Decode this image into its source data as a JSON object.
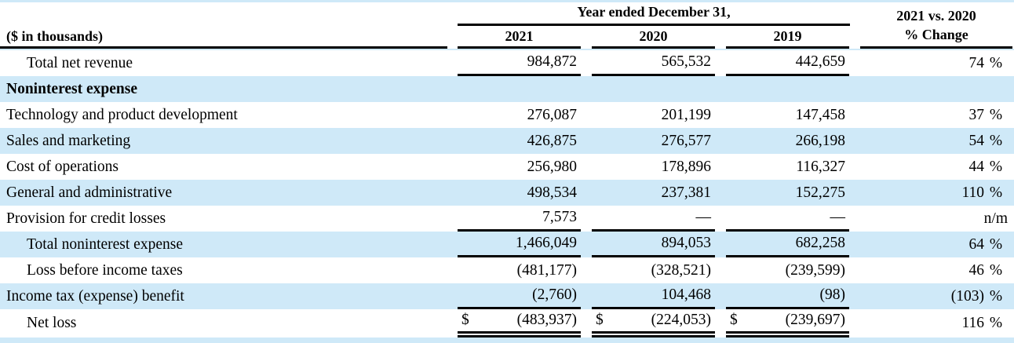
{
  "table": {
    "units_label": "($ in thousands)",
    "col_group_header": "Year ended December 31,",
    "change_header_line1": "2021 vs. 2020",
    "change_header_line2": "% Change",
    "year_headers": [
      "2021",
      "2020",
      "2019"
    ],
    "colors": {
      "row_highlight": "#cfe9f8",
      "rule": "#000000",
      "text": "#000000"
    },
    "rows": [
      {
        "label": "Total net revenue",
        "indent": true,
        "bold": false,
        "highlight": false,
        "dollar": false,
        "values": [
          "984,872",
          "565,532",
          "442,659"
        ],
        "pct": "74",
        "pct_sign": "%",
        "rule_below": "single"
      },
      {
        "label": "Noninterest expense",
        "indent": false,
        "bold": true,
        "highlight": true,
        "dollar": false,
        "values": [
          "",
          "",
          ""
        ],
        "pct": "",
        "pct_sign": "",
        "rule_below": "none"
      },
      {
        "label": "Technology and product development",
        "indent": false,
        "bold": false,
        "highlight": false,
        "dollar": false,
        "values": [
          "276,087",
          "201,199",
          "147,458"
        ],
        "pct": "37",
        "pct_sign": "%",
        "rule_below": "none"
      },
      {
        "label": "Sales and marketing",
        "indent": false,
        "bold": false,
        "highlight": true,
        "dollar": false,
        "values": [
          "426,875",
          "276,577",
          "266,198"
        ],
        "pct": "54",
        "pct_sign": "%",
        "rule_below": "none"
      },
      {
        "label": "Cost of operations",
        "indent": false,
        "bold": false,
        "highlight": false,
        "dollar": false,
        "values": [
          "256,980",
          "178,896",
          "116,327"
        ],
        "pct": "44",
        "pct_sign": "%",
        "rule_below": "none"
      },
      {
        "label": "General and administrative",
        "indent": false,
        "bold": false,
        "highlight": true,
        "dollar": false,
        "values": [
          "498,534",
          "237,381",
          "152,275"
        ],
        "pct": "110",
        "pct_sign": "%",
        "rule_below": "none"
      },
      {
        "label": "Provision for credit losses",
        "indent": false,
        "bold": false,
        "highlight": false,
        "dollar": false,
        "values": [
          "7,573",
          "—",
          "—"
        ],
        "pct": "n/m",
        "pct_sign": "",
        "rule_below": "single"
      },
      {
        "label": "Total noninterest expense",
        "indent": true,
        "bold": false,
        "highlight": true,
        "dollar": false,
        "values": [
          "1,466,049",
          "894,053",
          "682,258"
        ],
        "pct": "64",
        "pct_sign": "%",
        "rule_below": "single"
      },
      {
        "label": "Loss before income taxes",
        "indent": true,
        "bold": false,
        "highlight": false,
        "dollar": false,
        "values": [
          "(481,177)",
          "(328,521)",
          "(239,599)"
        ],
        "pct": "46",
        "pct_sign": "%",
        "rule_below": "none"
      },
      {
        "label": "Income tax (expense) benefit",
        "indent": false,
        "bold": false,
        "highlight": true,
        "dollar": false,
        "values": [
          "(2,760)",
          "104,468",
          "(98)"
        ],
        "pct": "(103)",
        "pct_sign": "%",
        "rule_below": "single"
      },
      {
        "label": "Net loss",
        "indent": true,
        "bold": false,
        "highlight": false,
        "dollar": true,
        "values": [
          "(483,937)",
          "(224,053)",
          "(239,697)"
        ],
        "pct": "116",
        "pct_sign": "%",
        "rule_below": "double"
      }
    ]
  }
}
